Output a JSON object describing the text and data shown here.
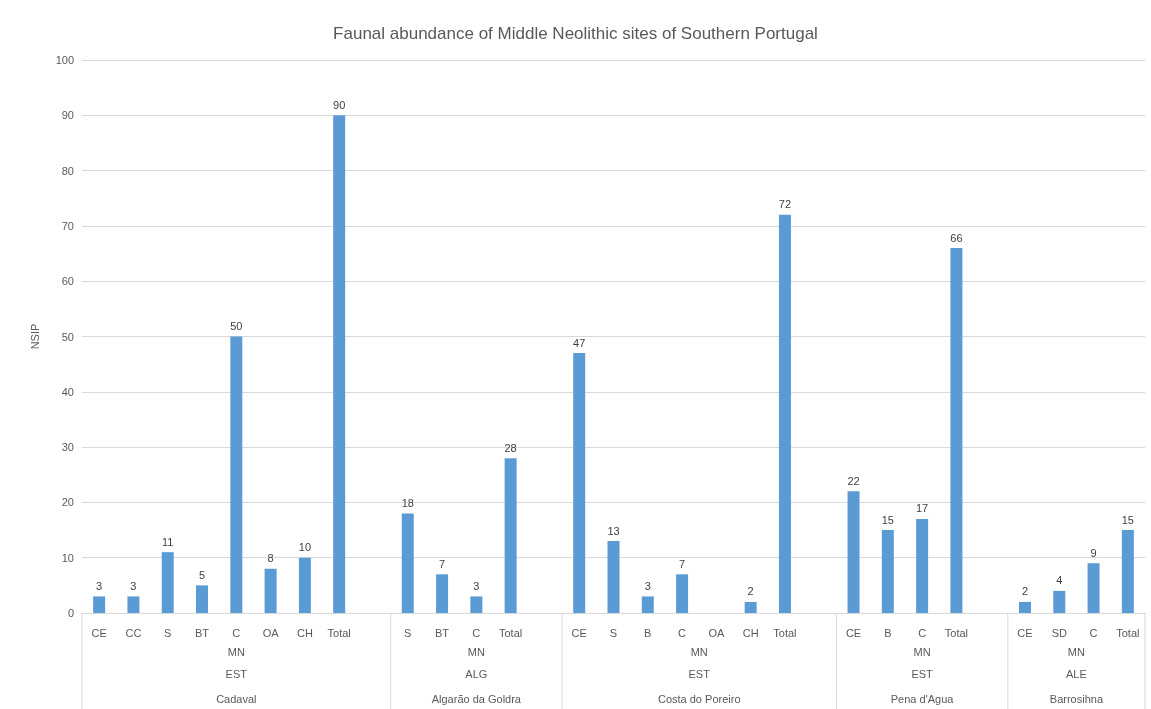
{
  "chart_data": {
    "type": "bar",
    "title": "Faunal abundance of Middle Neolithic sites of Southern Portugal",
    "ylabel": "NSIP",
    "categories": [
      "CE",
      "CC",
      "S",
      "BT",
      "C",
      "OA",
      "CH",
      "Total",
      null,
      "S",
      "BT",
      "C",
      "Total",
      null,
      "CE",
      "S",
      "B",
      "C",
      "OA",
      "CH",
      "Total",
      null,
      "CE",
      "B",
      "C",
      "Total",
      null,
      "CE",
      "SD",
      "C",
      "Total"
    ],
    "values": [
      3,
      3,
      11,
      5,
      50,
      8,
      10,
      90,
      null,
      18,
      7,
      3,
      28,
      null,
      47,
      13,
      3,
      7,
      null,
      2,
      72,
      null,
      22,
      15,
      17,
      66,
      null,
      2,
      4,
      9,
      15
    ],
    "color": "#5b9bd5",
    "ylim": [
      0,
      100
    ],
    "yticks": [
      0,
      10,
      20,
      30,
      40,
      50,
      60,
      70,
      80,
      90,
      100
    ],
    "grid": "y",
    "data_labels": true,
    "annotations": [
      "MN",
      "EST",
      "Cadaval",
      "MN",
      "ALG",
      "Algarão da Goldra",
      "MN",
      "EST",
      "Costa do Poreiro",
      "MN",
      "EST",
      "Pena d'Agua",
      "MN",
      "ALE",
      "Barrosihna"
    ]
  }
}
